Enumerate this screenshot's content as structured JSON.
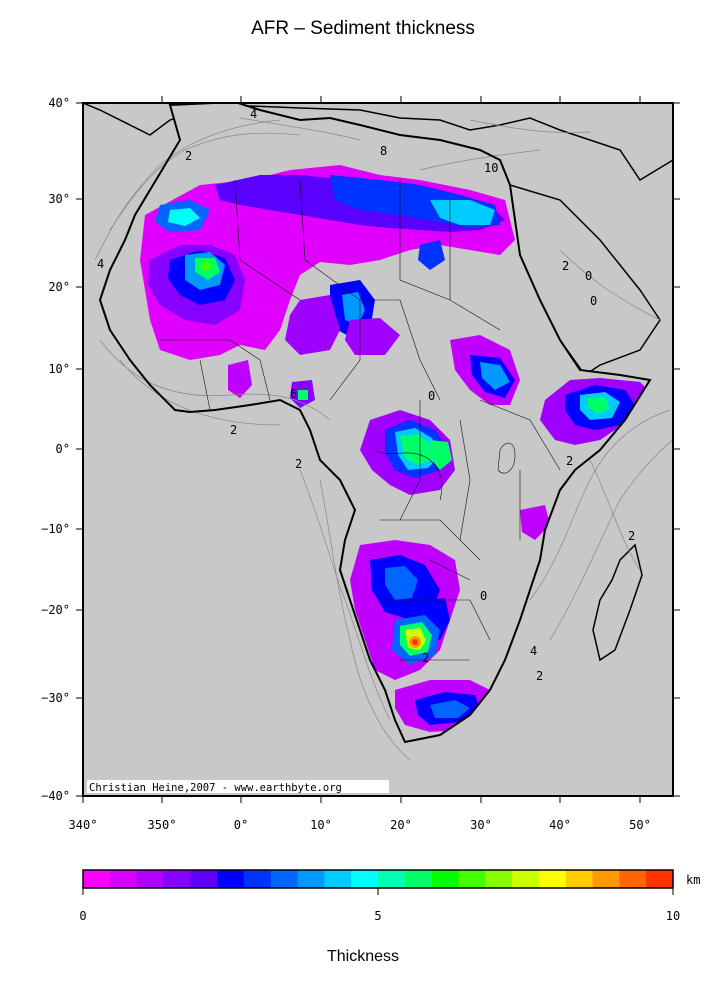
{
  "title": "AFR – Sediment thickness",
  "credit": "Christian Heine,2007 - www.earthbyte.org",
  "lat_ticks": [
    "40°",
    "30°",
    "20°",
    "10°",
    "0°",
    "−10°",
    "−20°",
    "−30°",
    "−40°"
  ],
  "lon_ticks": [
    "340°",
    "350°",
    "0°",
    "10°",
    "20°",
    "30°",
    "40°",
    "50°"
  ],
  "colorbar": {
    "unit": "km",
    "min_label": "0",
    "mid_label": "5",
    "max_label": "10",
    "colors": [
      "#ff00ff",
      "#d800ff",
      "#b000ff",
      "#8800ff",
      "#6000ff",
      "#0000ff",
      "#0033ff",
      "#0066ff",
      "#0099ff",
      "#00ccff",
      "#00ffff",
      "#00ffb0",
      "#00ff66",
      "#00ff00",
      "#44ff00",
      "#88ff00",
      "#ccff00",
      "#ffff00",
      "#ffcc00",
      "#ff9900",
      "#ff6600",
      "#ff3300"
    ]
  },
  "xlabel": "Thickness",
  "contour_labels": [
    "4",
    "2",
    "8",
    "10",
    "6",
    "0"
  ],
  "colors": {
    "ocean": "#c8c8c8",
    "no_data": "#ffffff",
    "coast": "#000000",
    "frame": "#000000"
  }
}
